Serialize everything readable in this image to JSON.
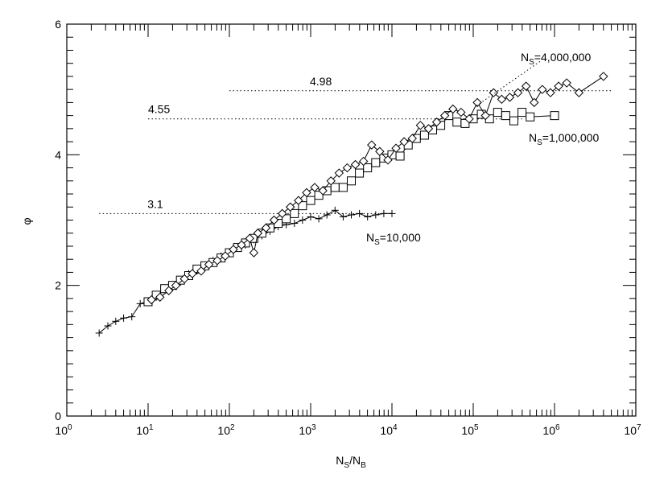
{
  "chart_data": {
    "type": "line",
    "title": "",
    "xlabel": "N_S/N_B",
    "ylabel": "φ",
    "xscale": "log",
    "xlim": [
      1,
      10000000
    ],
    "ylim": [
      0,
      6
    ],
    "grid": false,
    "x_ticks": [
      {
        "base": "10",
        "exp": "0"
      },
      {
        "base": "10",
        "exp": "1"
      },
      {
        "base": "10",
        "exp": "2"
      },
      {
        "base": "10",
        "exp": "3"
      },
      {
        "base": "10",
        "exp": "4"
      },
      {
        "base": "10",
        "exp": "5"
      },
      {
        "base": "10",
        "exp": "6"
      },
      {
        "base": "10",
        "exp": "7"
      }
    ],
    "y_ticks": [
      "0",
      "2",
      "4",
      "6"
    ],
    "reference_levels": [
      {
        "value": 4.98,
        "label": "4.98",
        "x_from": 100,
        "x_to": 5000000
      },
      {
        "value": 4.55,
        "label": "4.55",
        "x_from": 10,
        "x_to": 400000
      },
      {
        "value": 3.1,
        "label": "3.1",
        "x_from": 2.5,
        "x_to": 10000
      }
    ],
    "series": [
      {
        "name": "N_S=10,000",
        "label": {
          "base": "N",
          "sub": "S",
          "rest": "=10,000"
        },
        "marker": "plus",
        "x": [
          2.5,
          3.2,
          4,
          5,
          6.3,
          8,
          10,
          12.6,
          16,
          20,
          25,
          31.6,
          40,
          50,
          63,
          79,
          100,
          126,
          158,
          200,
          251,
          316,
          398,
          501,
          631,
          794,
          1000,
          1259,
          1585,
          1995,
          2512,
          3162,
          3981,
          5012,
          6310,
          7943,
          10000
        ],
        "y": [
          1.27,
          1.38,
          1.45,
          1.5,
          1.52,
          1.72,
          1.76,
          1.82,
          1.95,
          1.97,
          2.05,
          2.18,
          2.22,
          2.3,
          2.38,
          2.45,
          2.5,
          2.58,
          2.62,
          2.7,
          2.76,
          2.83,
          2.9,
          2.93,
          2.95,
          3.0,
          3.05,
          3.02,
          3.08,
          3.15,
          3.05,
          3.08,
          3.1,
          3.05,
          3.08,
          3.1,
          3.1
        ]
      },
      {
        "name": "N_S=1,000,000",
        "label": {
          "base": "N",
          "sub": "S",
          "rest": "=1,000,000"
        },
        "marker": "square",
        "x": [
          10,
          12.6,
          16,
          20,
          25,
          31.6,
          40,
          50,
          63,
          79,
          100,
          126,
          158,
          200,
          251,
          316,
          398,
          501,
          631,
          794,
          1000,
          1259,
          1585,
          1995,
          2512,
          3162,
          3981,
          5012,
          6310,
          7943,
          10000,
          12589,
          15849,
          19953,
          25119,
          31623,
          39811,
          50119,
          63096,
          79433,
          100000,
          125893,
          158489,
          199526,
          251189,
          316228,
          398107,
          501187,
          1000000
        ],
        "y": [
          1.75,
          1.85,
          1.95,
          2.0,
          2.08,
          2.15,
          2.25,
          2.3,
          2.35,
          2.42,
          2.5,
          2.58,
          2.65,
          2.72,
          2.8,
          2.88,
          2.95,
          3.02,
          3.1,
          3.22,
          3.3,
          3.38,
          3.45,
          3.5,
          3.5,
          3.6,
          3.72,
          3.8,
          3.88,
          3.95,
          4.0,
          3.98,
          4.15,
          4.25,
          4.3,
          4.38,
          4.45,
          4.6,
          4.5,
          4.48,
          4.55,
          4.62,
          4.55,
          4.65,
          4.6,
          4.52,
          4.65,
          4.58,
          4.6
        ]
      },
      {
        "name": "N_S=4,000,000",
        "label": {
          "base": "N",
          "sub": "S",
          "rest": "=4,000,000"
        },
        "marker": "diamond",
        "x": [
          11,
          14,
          18,
          22,
          28,
          35,
          45,
          56,
          71,
          89,
          112,
          141,
          178,
          200,
          224,
          282,
          355,
          447,
          562,
          708,
          891,
          1122,
          1413,
          1778,
          2239,
          2818,
          3548,
          4467,
          5623,
          7079,
          8913,
          11220,
          14125,
          17783,
          22387,
          28184,
          35481,
          44668,
          56234,
          70795,
          89125,
          112202,
          141254,
          177828,
          223872,
          281838,
          354813,
          446684,
          562341,
          707946,
          891251,
          1122018,
          1412538,
          2000000,
          4000000
        ],
        "y": [
          1.78,
          1.82,
          1.92,
          2.0,
          2.1,
          2.18,
          2.22,
          2.32,
          2.38,
          2.45,
          2.55,
          2.62,
          2.72,
          2.5,
          2.8,
          2.88,
          3.0,
          3.1,
          3.2,
          3.3,
          3.42,
          3.5,
          3.45,
          3.6,
          3.72,
          3.8,
          3.85,
          3.9,
          4.15,
          4.05,
          3.92,
          4.1,
          4.2,
          4.25,
          4.45,
          4.4,
          4.5,
          4.6,
          4.7,
          4.65,
          4.55,
          4.8,
          4.6,
          4.95,
          4.85,
          4.88,
          4.95,
          5.05,
          4.8,
          5.0,
          4.95,
          5.05,
          5.1,
          4.95,
          5.2
        ]
      }
    ]
  }
}
